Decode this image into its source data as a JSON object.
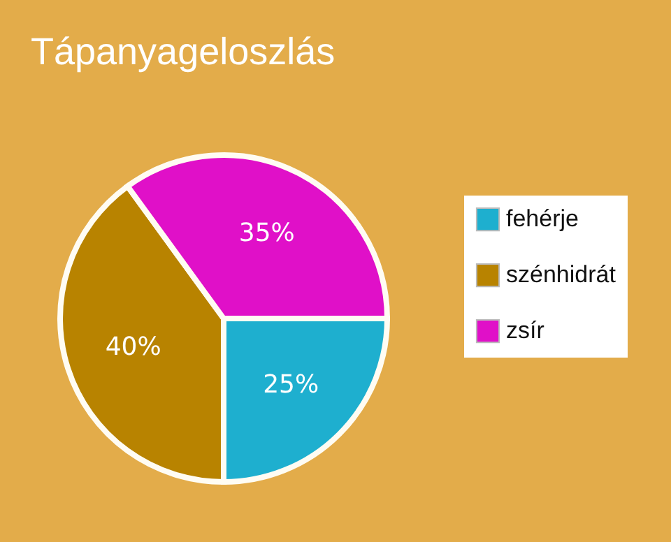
{
  "chart_data": {
    "type": "pie",
    "title": "Tápanyageloszlás",
    "categories": [
      "fehérje",
      "szénhidrát",
      "zsír"
    ],
    "values": [
      25,
      40,
      35
    ],
    "colors": [
      "#1eafcf",
      "#b88300",
      "#e010c8"
    ],
    "value_labels": [
      "25%",
      "40%",
      "35%"
    ],
    "legend": "right"
  }
}
